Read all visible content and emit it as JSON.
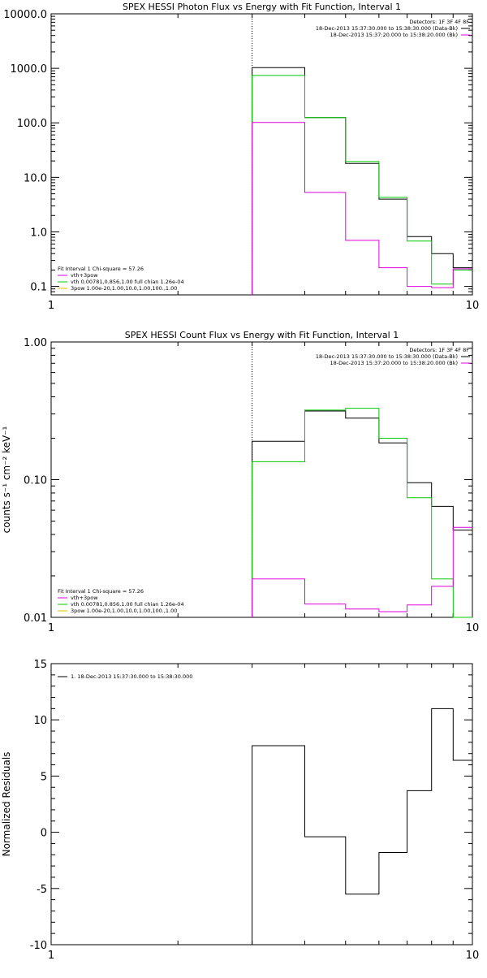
{
  "chart_data": [
    {
      "type": "line",
      "step": true,
      "title": "SPEX HESSI Photon Flux vs Energy with Fit Function, Interval 1",
      "xlabel": "",
      "ylabel": "",
      "xscale": "log",
      "yscale": "log",
      "xlim": [
        1,
        10
      ],
      "ylim": [
        0.07,
        10000
      ],
      "xticks": [
        1,
        10
      ],
      "xtick_labels": [
        "1",
        "10"
      ],
      "yticks": [
        0.1,
        1,
        10,
        100,
        1000,
        10000
      ],
      "ytick_labels": [
        "0.1",
        "1.0",
        "10.0",
        "100.0",
        "1000.0",
        "10000.0"
      ],
      "vline_x": 3,
      "bin_edges": [
        3,
        4,
        5,
        6,
        7,
        8,
        9,
        10
      ],
      "series": [
        {
          "name": "18-Dec-2013 15:37:30.000 to 15:38:30.000 (Data-Bk)",
          "color": "#000000",
          "values": [
            1030,
            125,
            18,
            4,
            0.82,
            0.4,
            0.22
          ]
        },
        {
          "name": "vth 0.00781,0.856,1.00  full chian 1.26e-04",
          "color": "#00c800",
          "values": [
            740,
            125,
            19.5,
            4.3,
            0.68,
            0.11,
            0.2
          ]
        },
        {
          "name": "vth+3pow",
          "color": "#e000e0",
          "values": [
            102,
            5.3,
            0.7,
            0.22,
            0.1,
            0.095,
            0.21
          ]
        }
      ],
      "legend": {
        "header": "Detectors: 1F 3F 4F 8F",
        "entries": [
          {
            "label": "18-Dec-2013 15:37:30.000 to 15:38:30.000 (Data-Bk)",
            "color": "#000000"
          },
          {
            "label": "18-Dec-2013 15:37:20.000 to 15:38:20.000 (Bk)",
            "color": "#e000e0"
          }
        ]
      },
      "fit_legend": {
        "header": "Fit Interval 1    Chi-square = 57.26",
        "entries": [
          {
            "label": "vth+3pow",
            "color": "#e000e0"
          },
          {
            "label": "vth 0.00781,0.856,1.00  full chian 1.26e-04",
            "color": "#00c800"
          },
          {
            "label": "3pow 1.00e-20,1.00,10.0,1.00,100.,1.00",
            "color": "#e0c000"
          }
        ]
      }
    },
    {
      "type": "line",
      "step": true,
      "title": "SPEX HESSI Count Flux vs Energy with Fit Function, Interval 1",
      "xlabel": "",
      "ylabel": "counts s⁻¹ cm⁻² keV⁻¹",
      "xscale": "log",
      "yscale": "log",
      "xlim": [
        1,
        10
      ],
      "ylim": [
        0.01,
        1
      ],
      "xticks": [
        1,
        10
      ],
      "xtick_labels": [
        "1",
        "10"
      ],
      "yticks": [
        0.01,
        0.1,
        1
      ],
      "ytick_labels": [
        "0.01",
        "0.10",
        "1.00"
      ],
      "vline_x": 3,
      "bin_edges": [
        3,
        4,
        5,
        6,
        7,
        8,
        9,
        10
      ],
      "series": [
        {
          "name": "18-Dec-2013 15:37:30.000 to 15:38:30.000 (Data-Bk)",
          "color": "#000000",
          "values": [
            0.19,
            0.315,
            0.28,
            0.185,
            0.095,
            0.064,
            0.043
          ]
        },
        {
          "name": "vth 0.00781,0.856,1.00  full chian 1.26e-04",
          "color": "#00c800",
          "values": [
            0.135,
            0.32,
            0.33,
            0.2,
            0.074,
            0.019,
            0.0
          ]
        },
        {
          "name": "vth+3pow",
          "color": "#e000e0",
          "values": [
            0.019,
            0.0125,
            0.0115,
            0.011,
            0.0123,
            0.0168,
            0.045
          ]
        }
      ],
      "legend": {
        "header": "Detectors: 1F 3F 4F 8F",
        "entries": [
          {
            "label": "18-Dec-2013 15:37:30.000 to 15:38:30.000 (Data-Bk)",
            "color": "#000000"
          },
          {
            "label": "18-Dec-2013 15:37:20.000 to 15:38:20.000 (Bk)",
            "color": "#e000e0"
          }
        ]
      },
      "fit_legend": {
        "header": "Fit Interval 1    Chi-square = 57.26",
        "entries": [
          {
            "label": "vth+3pow",
            "color": "#e000e0"
          },
          {
            "label": "vth 0.00781,0.856,1.00  full chian 1.26e-04",
            "color": "#00c800"
          },
          {
            "label": "3pow 1.00e-20,1.00,10.0,1.00,100.,1.00",
            "color": "#e0c000"
          }
        ]
      }
    },
    {
      "type": "line",
      "step": true,
      "title": "",
      "xlabel": "",
      "ylabel": "Normalized Residuals",
      "xscale": "log",
      "yscale": "linear",
      "xlim": [
        1,
        10
      ],
      "ylim": [
        -10,
        15
      ],
      "xticks": [
        1,
        10
      ],
      "xtick_labels": [
        "1",
        "10"
      ],
      "yticks": [
        -10,
        -5,
        0,
        5,
        10,
        15
      ],
      "ytick_labels": [
        "-10",
        "-5",
        "0",
        "5",
        "10",
        "15"
      ],
      "bin_edges": [
        3,
        4,
        5,
        6,
        7,
        8,
        9,
        10
      ],
      "series": [
        {
          "name": "1. 18-Dec-2013 15:37:30.000 to 15:38:30.000",
          "color": "#000000",
          "values": [
            7.7,
            -0.4,
            -5.5,
            -1.8,
            3.7,
            11.0,
            6.4
          ]
        }
      ],
      "legend": {
        "entries": [
          {
            "label": "1. 18-Dec-2013 15:37:30.000 to 15:38:30.000",
            "color": "#000000"
          }
        ]
      }
    }
  ]
}
